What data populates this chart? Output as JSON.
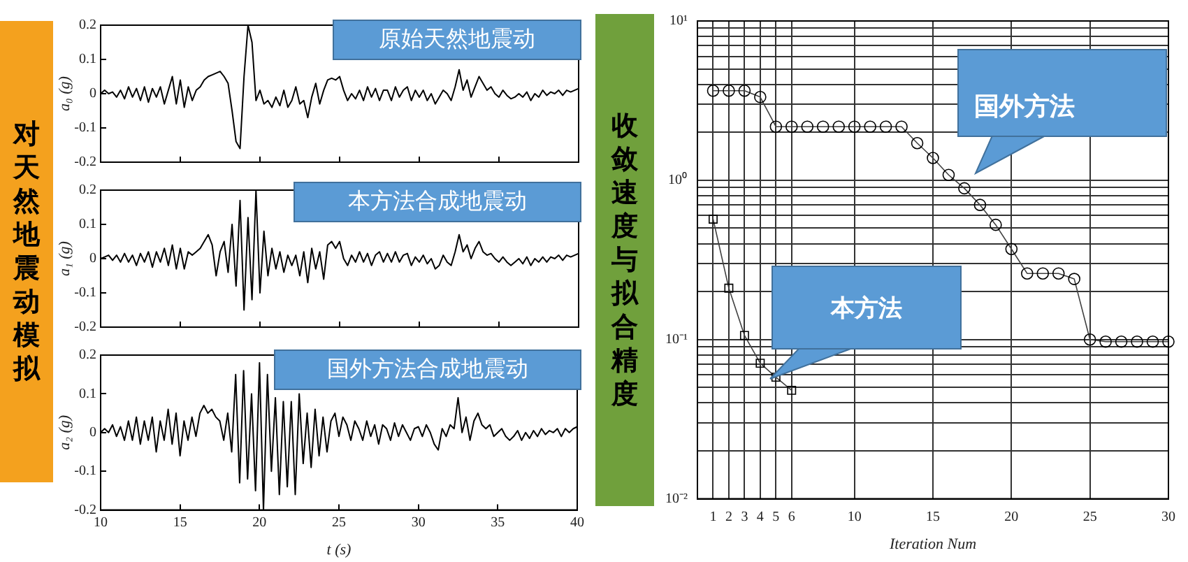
{
  "chart_data": [
    {
      "type": "line",
      "title": "原始天然地震动",
      "ylabel": "a₀ (g)",
      "annotations": [
        "对天然地震动模拟"
      ],
      "color": "#000000",
      "xlim": [
        10,
        40
      ],
      "xticks": [
        10,
        15,
        20,
        25,
        30,
        35,
        40
      ],
      "ylim": [
        -0.2,
        0.2
      ],
      "yticks": [
        -0.2,
        -0.1,
        0,
        0.1,
        0.2
      ],
      "tick_labels": "y",
      "x": [
        10,
        10.25,
        10.5,
        10.75,
        11,
        11.25,
        11.5,
        11.75,
        12,
        12.25,
        12.5,
        12.75,
        13,
        13.25,
        13.5,
        13.75,
        14,
        14.25,
        14.5,
        14.75,
        15,
        15.25,
        15.5,
        15.75,
        16,
        16.25,
        16.5,
        16.75,
        17,
        17.25,
        17.5,
        17.75,
        18,
        18.25,
        18.5,
        18.75,
        19,
        19.25,
        19.5,
        19.75,
        20,
        20.25,
        20.5,
        20.75,
        21,
        21.25,
        21.5,
        21.75,
        22,
        22.25,
        22.5,
        22.75,
        23,
        23.25,
        23.5,
        23.75,
        24,
        24.25,
        24.5,
        24.75,
        25,
        25.25,
        25.5,
        25.75,
        26,
        26.25,
        26.5,
        26.75,
        27,
        27.25,
        27.5,
        27.75,
        28,
        28.25,
        28.5,
        28.75,
        29,
        29.25,
        29.5,
        29.75,
        30,
        30.25,
        30.5,
        30.75,
        31,
        31.25,
        31.5,
        31.75,
        32,
        32.25,
        32.5,
        32.75,
        33,
        33.25,
        33.5,
        33.75,
        34,
        34.25,
        34.5,
        34.75,
        35,
        35.25,
        35.5,
        35.75,
        36,
        36.25,
        36.5,
        36.75,
        37,
        37.25,
        37.5,
        37.75,
        38,
        38.25,
        38.5,
        38.75,
        39,
        39.25,
        39.5,
        39.75,
        40
      ],
      "values": [
        0,
        0.01,
        0,
        0.005,
        -0.01,
        0.01,
        -0.015,
        0.02,
        -0.01,
        0.015,
        -0.02,
        0.02,
        -0.025,
        0.015,
        -0.01,
        0.02,
        -0.03,
        0.01,
        0.05,
        -0.03,
        0.04,
        -0.04,
        0.02,
        -0.02,
        0.01,
        0.02,
        0.04,
        0.05,
        0.055,
        0.06,
        0.065,
        0.05,
        0.03,
        -0.05,
        -0.14,
        -0.16,
        0.05,
        0.2,
        0.15,
        -0.02,
        0.01,
        -0.03,
        -0.02,
        -0.04,
        -0.01,
        -0.035,
        0.01,
        -0.04,
        -0.02,
        0.02,
        -0.03,
        -0.02,
        -0.07,
        -0.01,
        0.03,
        -0.03,
        0.01,
        0.04,
        0.045,
        0.04,
        0.05,
        0.01,
        -0.02,
        0,
        -0.015,
        0.01,
        -0.02,
        0.02,
        -0.01,
        0.015,
        -0.02,
        0.01,
        0.01,
        -0.02,
        0.02,
        -0.01,
        0.01,
        0.02,
        -0.02,
        0.01,
        -0.01,
        0.01,
        -0.02,
        0,
        -0.03,
        -0.01,
        0.01,
        0,
        -0.02,
        0.02,
        0.07,
        0.01,
        0.04,
        -0.01,
        0.02,
        0.05,
        0.03,
        0.01,
        0.02,
        0,
        -0.01,
        0.01,
        -0.005,
        -0.015,
        -0.01,
        0,
        -0.01,
        0.005,
        -0.02,
        0,
        -0.01,
        0.01,
        -0.005,
        0.005,
        0,
        0.01,
        -0.005,
        0.01,
        0.005,
        0.01,
        0.015
      ]
    },
    {
      "type": "line",
      "title": "本方法合成地震动",
      "ylabel": "a₁ (g)",
      "color": "#000000",
      "xlim": [
        10,
        40
      ],
      "xticks": [
        10,
        15,
        20,
        25,
        30,
        35,
        40
      ],
      "ylim": [
        -0.2,
        0.2
      ],
      "yticks": [
        -0.2,
        -0.1,
        0,
        0.1,
        0.2
      ],
      "tick_labels": "y",
      "x": [
        10,
        10.25,
        10.5,
        10.75,
        11,
        11.25,
        11.5,
        11.75,
        12,
        12.25,
        12.5,
        12.75,
        13,
        13.25,
        13.5,
        13.75,
        14,
        14.25,
        14.5,
        14.75,
        15,
        15.25,
        15.5,
        15.75,
        16,
        16.25,
        16.5,
        16.75,
        17,
        17.25,
        17.5,
        17.75,
        18,
        18.25,
        18.5,
        18.75,
        19,
        19.25,
        19.5,
        19.75,
        20,
        20.25,
        20.5,
        20.75,
        21,
        21.25,
        21.5,
        21.75,
        22,
        22.25,
        22.5,
        22.75,
        23,
        23.25,
        23.5,
        23.75,
        24,
        24.25,
        24.5,
        24.75,
        25,
        25.25,
        25.5,
        25.75,
        26,
        26.25,
        26.5,
        26.75,
        27,
        27.25,
        27.5,
        27.75,
        28,
        28.25,
        28.5,
        28.75,
        29,
        29.25,
        29.5,
        29.75,
        30,
        30.25,
        30.5,
        30.75,
        31,
        31.25,
        31.5,
        31.75,
        32,
        32.25,
        32.5,
        32.75,
        33,
        33.25,
        33.5,
        33.75,
        34,
        34.25,
        34.5,
        34.75,
        35,
        35.25,
        35.5,
        35.75,
        36,
        36.25,
        36.5,
        36.75,
        37,
        37.25,
        37.5,
        37.75,
        38,
        38.25,
        38.5,
        38.75,
        39,
        39.25,
        39.5,
        39.75,
        40
      ],
      "values": [
        0,
        0.005,
        0.01,
        -0.005,
        0.01,
        -0.01,
        0.015,
        -0.01,
        0.01,
        -0.02,
        0.015,
        -0.01,
        0.02,
        -0.025,
        0.02,
        -0.01,
        0.03,
        -0.02,
        0.04,
        -0.03,
        0.03,
        -0.03,
        0.02,
        0.01,
        0.02,
        0.03,
        0.05,
        0.07,
        0.04,
        -0.05,
        0.02,
        0.05,
        -0.04,
        0.1,
        -0.08,
        0.17,
        -0.15,
        0.12,
        -0.12,
        0.2,
        -0.1,
        0.08,
        -0.05,
        0.03,
        -0.03,
        0.02,
        -0.04,
        0.01,
        -0.02,
        0.01,
        -0.05,
        0.02,
        -0.07,
        0.03,
        -0.03,
        0.02,
        -0.06,
        0.04,
        0.05,
        0.03,
        0.05,
        0,
        -0.02,
        0.01,
        -0.01,
        0.02,
        -0.01,
        0.015,
        -0.02,
        0.01,
        0.02,
        -0.01,
        0.015,
        -0.01,
        0.02,
        -0.01,
        0.01,
        0.015,
        -0.02,
        0.005,
        -0.01,
        0.01,
        -0.015,
        0,
        -0.03,
        -0.02,
        0.01,
        -0.01,
        -0.02,
        0.02,
        0.07,
        0.02,
        0.04,
        0,
        0.03,
        0.05,
        0.02,
        0.01,
        0.015,
        0,
        -0.01,
        0.005,
        -0.01,
        -0.02,
        -0.01,
        0,
        -0.015,
        0.005,
        -0.02,
        0,
        -0.01,
        0.005,
        -0.01,
        0.005,
        0,
        0.01,
        -0.005,
        0.01,
        0.005,
        0.01,
        0.015
      ]
    },
    {
      "type": "line",
      "title": "国外方法合成地震动",
      "xlabel": "t (s)",
      "ylabel": "a₂ (g)",
      "color": "#000000",
      "xlim": [
        10,
        40
      ],
      "xticks": [
        10,
        15,
        20,
        25,
        30,
        35,
        40
      ],
      "ylim": [
        -0.2,
        0.2
      ],
      "yticks": [
        -0.2,
        -0.1,
        0,
        0.1,
        0.2
      ],
      "x": [
        10,
        10.25,
        10.5,
        10.75,
        11,
        11.25,
        11.5,
        11.75,
        12,
        12.25,
        12.5,
        12.75,
        13,
        13.25,
        13.5,
        13.75,
        14,
        14.25,
        14.5,
        14.75,
        15,
        15.25,
        15.5,
        15.75,
        16,
        16.25,
        16.5,
        16.75,
        17,
        17.25,
        17.5,
        17.75,
        18,
        18.25,
        18.5,
        18.75,
        19,
        19.25,
        19.5,
        19.75,
        20,
        20.25,
        20.5,
        20.75,
        21,
        21.25,
        21.5,
        21.75,
        22,
        22.25,
        22.5,
        22.75,
        23,
        23.25,
        23.5,
        23.75,
        24,
        24.25,
        24.5,
        24.75,
        25,
        25.25,
        25.5,
        25.75,
        26,
        26.25,
        26.5,
        26.75,
        27,
        27.25,
        27.5,
        27.75,
        28,
        28.25,
        28.5,
        28.75,
        29,
        29.25,
        29.5,
        29.75,
        30,
        30.25,
        30.5,
        30.75,
        31,
        31.25,
        31.5,
        31.75,
        32,
        32.25,
        32.5,
        32.75,
        33,
        33.25,
        33.5,
        33.75,
        34,
        34.25,
        34.5,
        34.75,
        35,
        35.25,
        35.5,
        35.75,
        36,
        36.25,
        36.5,
        36.75,
        37,
        37.25,
        37.5,
        37.75,
        38,
        38.25,
        38.5,
        38.75,
        39,
        39.25,
        39.5,
        39.75,
        40
      ],
      "values": [
        0,
        0.01,
        0,
        0.02,
        -0.01,
        0.015,
        -0.02,
        0.03,
        -0.02,
        0.04,
        -0.03,
        0.03,
        -0.02,
        0.04,
        -0.05,
        0.03,
        -0.02,
        0.06,
        -0.03,
        0.05,
        -0.06,
        0.03,
        -0.02,
        0.04,
        -0.01,
        0.05,
        0.07,
        0.05,
        0.06,
        0.04,
        0.03,
        -0.02,
        0.05,
        -0.05,
        0.15,
        -0.13,
        0.16,
        -0.12,
        0.1,
        -0.15,
        0.18,
        -0.2,
        0.15,
        -0.1,
        0.09,
        -0.16,
        0.08,
        -0.14,
        0.08,
        -0.16,
        0.1,
        -0.08,
        0.05,
        -0.09,
        0.06,
        -0.06,
        0.04,
        -0.05,
        0.03,
        0.05,
        -0.01,
        0.04,
        0.02,
        -0.02,
        0.03,
        0.01,
        -0.02,
        0.03,
        -0.01,
        0.02,
        -0.03,
        0.02,
        0.01,
        -0.02,
        0.025,
        -0.01,
        0.02,
        0,
        -0.02,
        0.01,
        0.015,
        -0.01,
        0.02,
        0,
        -0.03,
        -0.045,
        0.01,
        -0.01,
        0.02,
        0.01,
        0.09,
        0,
        0.04,
        -0.02,
        0.03,
        0.05,
        0.02,
        0.01,
        0.02,
        -0.01,
        0,
        0.01,
        -0.01,
        -0.02,
        -0.01,
        0.005,
        -0.02,
        0,
        -0.015,
        0.005,
        -0.01,
        0.01,
        -0.005,
        0.005,
        0,
        0.01,
        -0.01,
        0.01,
        0,
        0.01,
        0.015
      ]
    },
    {
      "type": "line",
      "xlabel": "Iteration Num",
      "annotations": [
        "收敛速度与拟合精度"
      ],
      "log": "y",
      "grid": true,
      "xlim": [
        0,
        30
      ],
      "xticks": [
        1,
        2,
        3,
        4,
        5,
        6,
        10,
        15,
        20,
        25,
        30
      ],
      "ylim": [
        0.01,
        10
      ],
      "yticks": [
        {
          "value": 0.01,
          "label": "10⁻²"
        },
        {
          "value": 0.02,
          "label": null
        },
        {
          "value": 0.03,
          "label": null
        },
        {
          "value": 0.04,
          "label": null
        },
        {
          "value": 0.05,
          "label": null
        },
        {
          "value": 0.06,
          "label": null
        },
        {
          "value": 0.07,
          "label": null
        },
        {
          "value": 0.08,
          "label": null
        },
        {
          "value": 0.09,
          "label": null
        },
        {
          "value": 0.1,
          "label": "10⁻¹"
        },
        {
          "value": 0.2,
          "label": null
        },
        {
          "value": 0.3,
          "label": null
        },
        {
          "value": 0.4,
          "label": null
        },
        {
          "value": 0.5,
          "label": null
        },
        {
          "value": 0.6,
          "label": null
        },
        {
          "value": 0.7,
          "label": null
        },
        {
          "value": 0.8,
          "label": null
        },
        {
          "value": 0.9,
          "label": null
        },
        {
          "value": 1,
          "label": "10⁰"
        },
        {
          "value": 2,
          "label": null
        },
        {
          "value": 3,
          "label": null
        },
        {
          "value": 4,
          "label": null
        },
        {
          "value": 5,
          "label": null
        },
        {
          "value": 6,
          "label": null
        },
        {
          "value": 7,
          "label": null
        },
        {
          "value": 8,
          "label": null
        },
        {
          "value": 9,
          "label": null
        },
        {
          "value": 10,
          "label": "10¹"
        }
      ],
      "series": [
        {
          "name": "本方法",
          "color": "#404040",
          "marker": "square",
          "x": [
            1,
            2,
            3,
            4,
            5,
            6
          ],
          "values": [
            0.57,
            0.21,
            0.106,
            0.071,
            0.058,
            0.048
          ]
        },
        {
          "name": "国外方法",
          "color": "#404040",
          "marker": "circle",
          "x": [
            1,
            2,
            3,
            4,
            5,
            6,
            7,
            8,
            9,
            10,
            11,
            12,
            13,
            14,
            15,
            16,
            17,
            18,
            19,
            20,
            21,
            22,
            23,
            24,
            25,
            26,
            27,
            28,
            29,
            30
          ],
          "values": [
            3.65,
            3.65,
            3.65,
            3.33,
            2.17,
            2.17,
            2.17,
            2.17,
            2.17,
            2.17,
            2.17,
            2.17,
            2.17,
            1.71,
            1.38,
            1.08,
            0.89,
            0.7,
            0.525,
            0.37,
            0.26,
            0.26,
            0.26,
            0.24,
            0.1,
            0.097,
            0.097,
            0.097,
            0.097,
            0.097
          ]
        }
      ]
    }
  ]
}
